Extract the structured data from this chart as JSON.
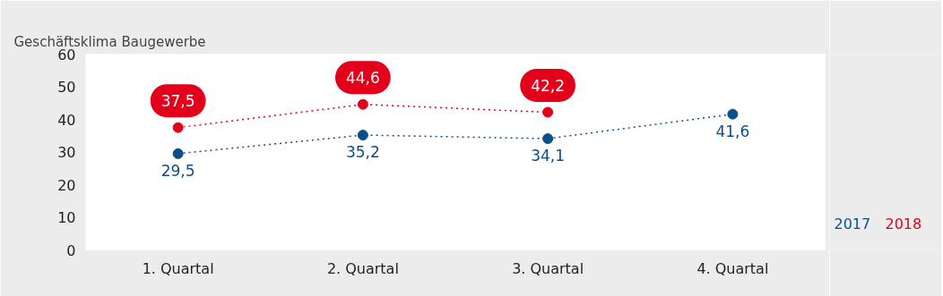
{
  "chart_data": {
    "type": "line",
    "title": "Geschäftsklima Baugewerbe",
    "categories": [
      "1. Quartal",
      "2. Quartal",
      "3. Quartal",
      "4. Quartal"
    ],
    "series": [
      {
        "name": "2017",
        "color": "#0a4f8c",
        "values": [
          29.5,
          35.2,
          34.1,
          41.6
        ],
        "value_labels": [
          "29,5",
          "35,2",
          "34,1",
          "41,6"
        ]
      },
      {
        "name": "2018",
        "color": "#e2001a",
        "values": [
          37.5,
          44.6,
          42.2,
          null
        ],
        "value_labels": [
          "37,5",
          "44,6",
          "42,2",
          null
        ]
      }
    ],
    "ylim": [
      0,
      60
    ],
    "yticks": [
      0,
      10,
      20,
      30,
      40,
      50,
      60
    ],
    "marker": "circle",
    "line_style": "dotted",
    "grid": false
  }
}
